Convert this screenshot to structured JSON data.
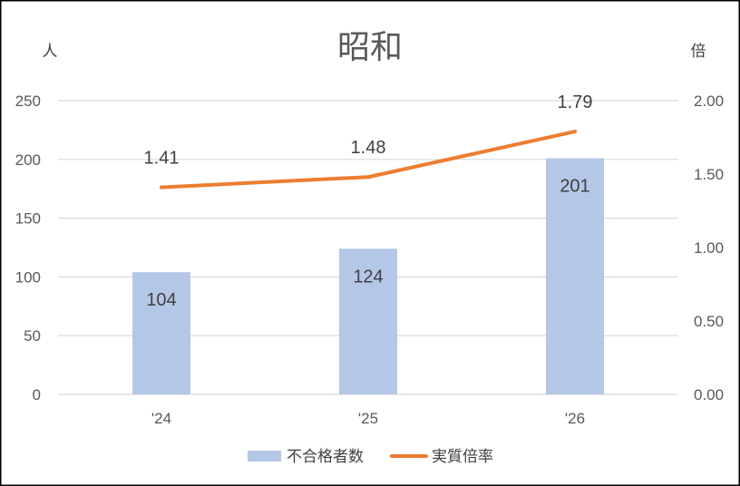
{
  "chart_data": {
    "type": "bar",
    "title": "昭和",
    "categories": [
      "'24",
      "'25",
      "'26"
    ],
    "ylabel": "人",
    "y2label": "倍",
    "ylim": [
      0,
      250
    ],
    "yticks": [
      0,
      50,
      100,
      150,
      200,
      250
    ],
    "y2lim": [
      0,
      2
    ],
    "y2ticks": [
      "0.00",
      "0.50",
      "1.00",
      "1.50",
      "2.00"
    ],
    "grid": true,
    "legend_position": "bottom",
    "series": [
      {
        "name": "不合格者数",
        "type": "bar",
        "axis": "left",
        "values": [
          104,
          124,
          201
        ],
        "color": "#b4c7e7"
      },
      {
        "name": "実質倍率",
        "type": "line",
        "axis": "right",
        "values": [
          1.41,
          1.48,
          1.79
        ],
        "color": "#ed7d31"
      }
    ]
  }
}
